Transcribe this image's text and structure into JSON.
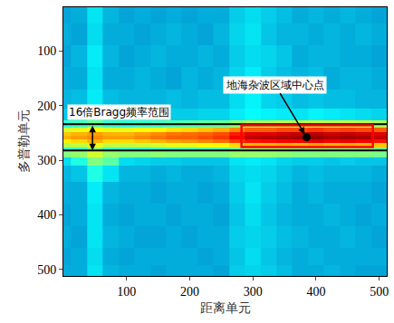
{
  "chart_data": {
    "type": "heatmap",
    "x_label": "距离单元",
    "y_label": "多普勒单元",
    "xlim": [
      0,
      512
    ],
    "ylim": [
      512,
      20
    ],
    "xticks": [
      100,
      200,
      300,
      400,
      500
    ],
    "yticks": [
      100,
      200,
      300,
      400,
      500
    ],
    "zlim": [
      0,
      1
    ],
    "x": [
      0,
      25,
      50,
      75,
      100,
      125,
      150,
      175,
      200,
      225,
      250,
      275,
      300,
      325,
      350,
      375,
      400,
      425,
      450,
      475,
      500
    ],
    "y": [
      30,
      70,
      110,
      150,
      190,
      220,
      235,
      245,
      252,
      258,
      265,
      272,
      280,
      290,
      300,
      320,
      360,
      400,
      440,
      480,
      505
    ],
    "z": [
      [
        0.26,
        0.27,
        0.34,
        0.28,
        0.26,
        0.27,
        0.26,
        0.27,
        0.26,
        0.27,
        0.27,
        0.31,
        0.33,
        0.31,
        0.29,
        0.27,
        0.28,
        0.27,
        0.28,
        0.27,
        0.26
      ],
      [
        0.27,
        0.26,
        0.33,
        0.27,
        0.27,
        0.26,
        0.27,
        0.28,
        0.27,
        0.26,
        0.28,
        0.32,
        0.34,
        0.3,
        0.28,
        0.28,
        0.27,
        0.28,
        0.27,
        0.28,
        0.27
      ],
      [
        0.26,
        0.28,
        0.35,
        0.28,
        0.26,
        0.27,
        0.28,
        0.27,
        0.27,
        0.28,
        0.27,
        0.31,
        0.33,
        0.32,
        0.3,
        0.27,
        0.28,
        0.28,
        0.27,
        0.27,
        0.26
      ],
      [
        0.27,
        0.27,
        0.34,
        0.27,
        0.27,
        0.28,
        0.27,
        0.26,
        0.28,
        0.27,
        0.28,
        0.32,
        0.35,
        0.31,
        0.29,
        0.28,
        0.29,
        0.27,
        0.28,
        0.28,
        0.27
      ],
      [
        0.28,
        0.29,
        0.35,
        0.29,
        0.28,
        0.28,
        0.28,
        0.29,
        0.28,
        0.29,
        0.29,
        0.33,
        0.36,
        0.32,
        0.31,
        0.29,
        0.3,
        0.29,
        0.29,
        0.28,
        0.28
      ],
      [
        0.3,
        0.31,
        0.36,
        0.31,
        0.3,
        0.31,
        0.3,
        0.31,
        0.31,
        0.32,
        0.32,
        0.35,
        0.37,
        0.36,
        0.35,
        0.34,
        0.36,
        0.35,
        0.34,
        0.33,
        0.32
      ],
      [
        0.42,
        0.44,
        0.48,
        0.43,
        0.42,
        0.43,
        0.44,
        0.45,
        0.46,
        0.47,
        0.48,
        0.52,
        0.55,
        0.55,
        0.56,
        0.56,
        0.57,
        0.56,
        0.57,
        0.56,
        0.55
      ],
      [
        0.58,
        0.6,
        0.62,
        0.6,
        0.6,
        0.62,
        0.63,
        0.65,
        0.66,
        0.68,
        0.7,
        0.74,
        0.78,
        0.78,
        0.8,
        0.8,
        0.82,
        0.8,
        0.81,
        0.8,
        0.78
      ],
      [
        0.68,
        0.7,
        0.72,
        0.7,
        0.7,
        0.72,
        0.74,
        0.76,
        0.77,
        0.78,
        0.8,
        0.85,
        0.9,
        0.9,
        0.92,
        0.93,
        0.94,
        0.92,
        0.93,
        0.92,
        0.9
      ],
      [
        0.7,
        0.72,
        0.74,
        0.72,
        0.72,
        0.74,
        0.76,
        0.78,
        0.78,
        0.8,
        0.82,
        0.88,
        0.93,
        0.94,
        0.95,
        0.96,
        0.97,
        0.95,
        0.96,
        0.95,
        0.93
      ],
      [
        0.64,
        0.66,
        0.7,
        0.66,
        0.66,
        0.68,
        0.7,
        0.72,
        0.73,
        0.75,
        0.77,
        0.82,
        0.86,
        0.87,
        0.88,
        0.88,
        0.9,
        0.88,
        0.89,
        0.88,
        0.86
      ],
      [
        0.55,
        0.56,
        0.6,
        0.56,
        0.56,
        0.57,
        0.58,
        0.6,
        0.6,
        0.62,
        0.63,
        0.66,
        0.7,
        0.7,
        0.71,
        0.7,
        0.72,
        0.7,
        0.71,
        0.7,
        0.68
      ],
      [
        0.42,
        0.43,
        0.5,
        0.43,
        0.42,
        0.42,
        0.43,
        0.44,
        0.44,
        0.45,
        0.45,
        0.48,
        0.5,
        0.5,
        0.5,
        0.49,
        0.5,
        0.49,
        0.5,
        0.49,
        0.48
      ],
      [
        0.5,
        0.52,
        0.58,
        0.52,
        0.5,
        0.5,
        0.51,
        0.5,
        0.5,
        0.5,
        0.5,
        0.52,
        0.52,
        0.52,
        0.51,
        0.5,
        0.5,
        0.5,
        0.5,
        0.5,
        0.49
      ],
      [
        0.33,
        0.4,
        0.5,
        0.46,
        0.33,
        0.32,
        0.31,
        0.31,
        0.3,
        0.3,
        0.3,
        0.34,
        0.35,
        0.34,
        0.32,
        0.31,
        0.31,
        0.3,
        0.31,
        0.3,
        0.3
      ],
      [
        0.28,
        0.3,
        0.4,
        0.34,
        0.28,
        0.28,
        0.27,
        0.28,
        0.27,
        0.27,
        0.28,
        0.32,
        0.33,
        0.32,
        0.3,
        0.28,
        0.29,
        0.28,
        0.28,
        0.28,
        0.27
      ],
      [
        0.27,
        0.27,
        0.35,
        0.28,
        0.27,
        0.27,
        0.26,
        0.27,
        0.27,
        0.26,
        0.27,
        0.31,
        0.34,
        0.31,
        0.29,
        0.27,
        0.28,
        0.27,
        0.27,
        0.27,
        0.26
      ],
      [
        0.26,
        0.27,
        0.34,
        0.27,
        0.26,
        0.27,
        0.27,
        0.26,
        0.27,
        0.27,
        0.26,
        0.3,
        0.33,
        0.3,
        0.28,
        0.27,
        0.27,
        0.28,
        0.27,
        0.26,
        0.27
      ],
      [
        0.27,
        0.26,
        0.34,
        0.28,
        0.27,
        0.26,
        0.26,
        0.27,
        0.26,
        0.27,
        0.27,
        0.31,
        0.32,
        0.31,
        0.29,
        0.28,
        0.27,
        0.27,
        0.28,
        0.27,
        0.26
      ],
      [
        0.26,
        0.27,
        0.33,
        0.27,
        0.26,
        0.27,
        0.27,
        0.27,
        0.27,
        0.26,
        0.27,
        0.3,
        0.33,
        0.3,
        0.28,
        0.27,
        0.28,
        0.27,
        0.27,
        0.27,
        0.27
      ],
      [
        0.27,
        0.27,
        0.34,
        0.28,
        0.27,
        0.27,
        0.26,
        0.27,
        0.27,
        0.27,
        0.26,
        0.31,
        0.32,
        0.31,
        0.29,
        0.27,
        0.27,
        0.28,
        0.27,
        0.26,
        0.26
      ]
    ],
    "annotations": [
      {
        "text": "16倍Bragg频率范围",
        "y_range": [
          234,
          282
        ]
      },
      {
        "text": "地海杂波区域中心点",
        "x": 385,
        "y": 258
      }
    ],
    "region": {
      "xlim": [
        282,
        490
      ],
      "ylim": [
        236,
        276
      ],
      "color": "red"
    }
  }
}
